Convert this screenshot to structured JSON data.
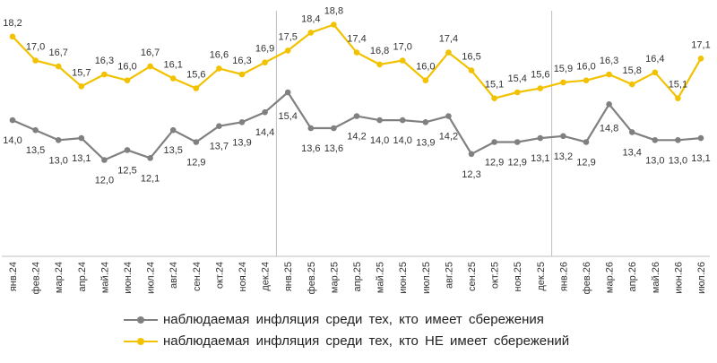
{
  "chart_data": {
    "type": "line",
    "title": "",
    "xlabel": "",
    "ylabel": "",
    "ylim": [
      0,
      20
    ],
    "grid": false,
    "legend_position": "bottom",
    "categories": [
      "янв.24",
      "фев.24",
      "мар.24",
      "апр.24",
      "май.24",
      "июн.24",
      "июл.24",
      "авг.24",
      "сен.24",
      "окт.24",
      "ноя.24",
      "дек.24",
      "янв.25",
      "фев.25",
      "мар.25",
      "апр.25",
      "май.25",
      "июн.25",
      "июл.25",
      "авг.25",
      "сен.25",
      "окт.25",
      "ноя.25",
      "дек.25",
      "янв.26",
      "фев.26",
      "мар.26",
      "апр.26",
      "май.26",
      "июн.26",
      "июл.26"
    ],
    "series": [
      {
        "name": "наблюдаемая инфляция среди тех, кто имеет сбережения",
        "color": "#808080",
        "values": [
          14.0,
          13.5,
          13.0,
          13.1,
          12.0,
          12.5,
          12.1,
          13.5,
          12.9,
          13.7,
          13.9,
          14.4,
          15.4,
          13.6,
          13.6,
          14.2,
          14.0,
          14.0,
          13.9,
          14.2,
          12.3,
          12.9,
          12.9,
          13.1,
          13.2,
          12.9,
          14.8,
          13.4,
          13.0,
          13.0,
          13.1
        ],
        "labels": [
          "14,0",
          "13,5",
          "13,0",
          "13,1",
          "12,0",
          "12,5",
          "12,1",
          "13,5",
          "12,9",
          "13,7",
          "13,9",
          "14,4",
          "15,4",
          "13,6",
          "13,6",
          "14,2",
          "14,0",
          "14,0",
          "13,9",
          "14,2",
          "12,3",
          "12,9",
          "12,9",
          "13,1",
          "13,2",
          "12,9",
          "14,8",
          "13,4",
          "13,0",
          "13,0",
          "13,1"
        ]
      },
      {
        "name": "наблюдаемая инфляция среди тех, кто НЕ имеет сбережений",
        "color": "#F2C200",
        "values": [
          18.2,
          17.0,
          16.7,
          15.7,
          16.3,
          16.0,
          16.7,
          16.1,
          15.6,
          16.6,
          16.3,
          16.9,
          17.5,
          18.4,
          18.8,
          17.4,
          16.8,
          17.0,
          16.0,
          17.4,
          16.5,
          15.1,
          15.4,
          15.6,
          15.9,
          16.0,
          16.3,
          15.8,
          16.4,
          15.1,
          17.1
        ],
        "labels": [
          "18,2",
          "17,0",
          "16,7",
          "15,7",
          "16,3",
          "16,0",
          "16,7",
          "16,1",
          "15,6",
          "16,6",
          "16,3",
          "16,9",
          "17,5",
          "18,4",
          "18,8",
          "17,4",
          "16,8",
          "17,0",
          "16,0",
          "17,4",
          "16,5",
          "15,1",
          "15,4",
          "15,6",
          "15,9",
          "16,0",
          "16,3",
          "15,8",
          "16,4",
          "15,1",
          "17,1"
        ]
      }
    ],
    "year_separators_after": [
      "дек.24",
      "дек.25"
    ]
  }
}
